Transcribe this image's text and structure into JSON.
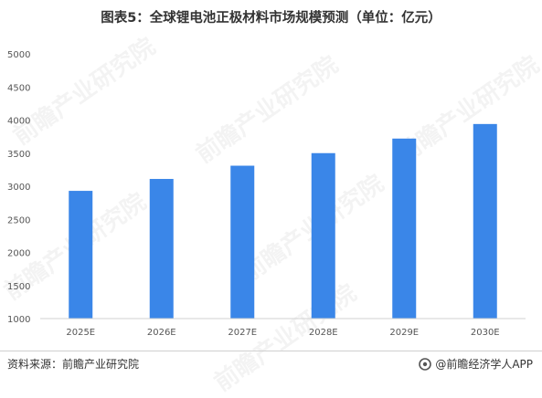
{
  "chart_data": {
    "type": "bar",
    "title": "图表5：全球锂电池正极材料市场规模预测（单位：亿元）",
    "categories": [
      "2025E",
      "2026E",
      "2027E",
      "2028E",
      "2029E",
      "2030E"
    ],
    "values": [
      2930,
      3110,
      3310,
      3500,
      3720,
      3940
    ],
    "ylim": [
      1000,
      5000
    ],
    "yticks": [
      1000,
      1500,
      2000,
      2500,
      3000,
      3500,
      4000,
      4500,
      5000
    ],
    "xlabel": "",
    "ylabel": "",
    "grid": false,
    "bar_color": "#3a86e8"
  },
  "footer": {
    "source": "资料来源：前瞻产业研究院",
    "brand": "@前瞻经济学人APP"
  },
  "watermark": {
    "text": "前瞻产业研究院"
  }
}
